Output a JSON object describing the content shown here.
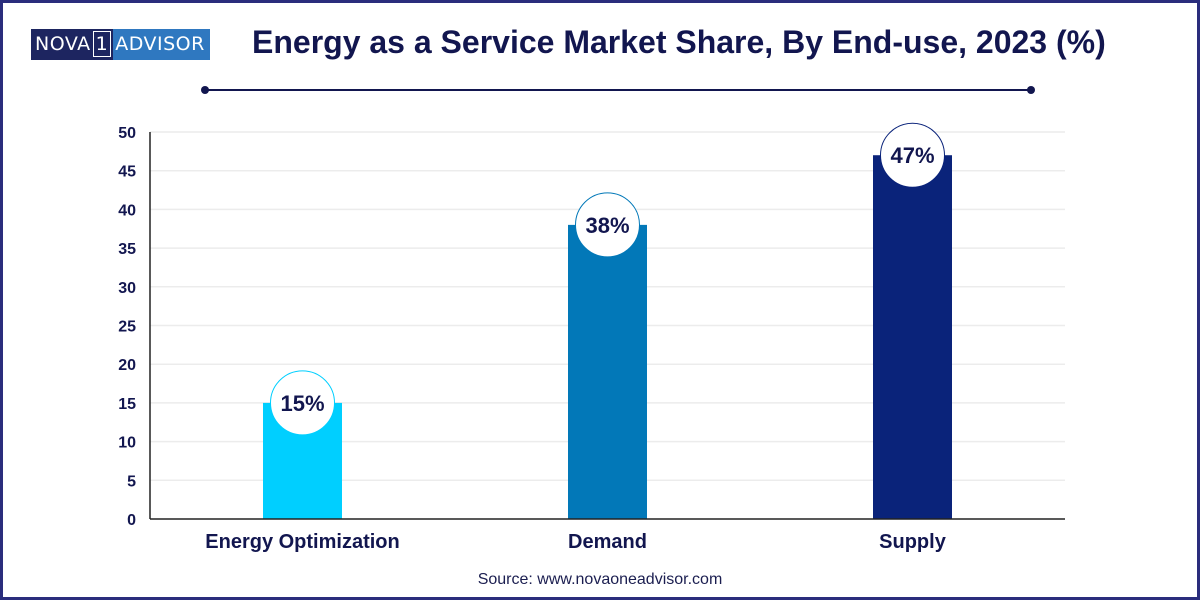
{
  "logo": {
    "part1": "NOVA",
    "part2": "1",
    "part3": "ADVISOR"
  },
  "source": "Source: www.novaoneadvisor.com",
  "colors": {
    "title": "#12164f",
    "axis_text": "#12164f",
    "frame": "#2a2d7c"
  },
  "chart_data": {
    "type": "bar",
    "title": "Energy as a Service Market Share, By End-use, 2023 (%)",
    "xlabel": "",
    "ylabel": "",
    "categories": [
      "Energy Optimization",
      "Demand",
      "Supply"
    ],
    "values": [
      15,
      38,
      47
    ],
    "data_labels": [
      "15%",
      "38%",
      "47%"
    ],
    "bar_colors": [
      "#00cfff",
      "#0278b8",
      "#0a237a"
    ],
    "ylim": [
      0,
      50
    ],
    "yticks": [
      0,
      5,
      10,
      15,
      20,
      25,
      30,
      35,
      40,
      45,
      50
    ],
    "grid": true,
    "legend": "none"
  }
}
